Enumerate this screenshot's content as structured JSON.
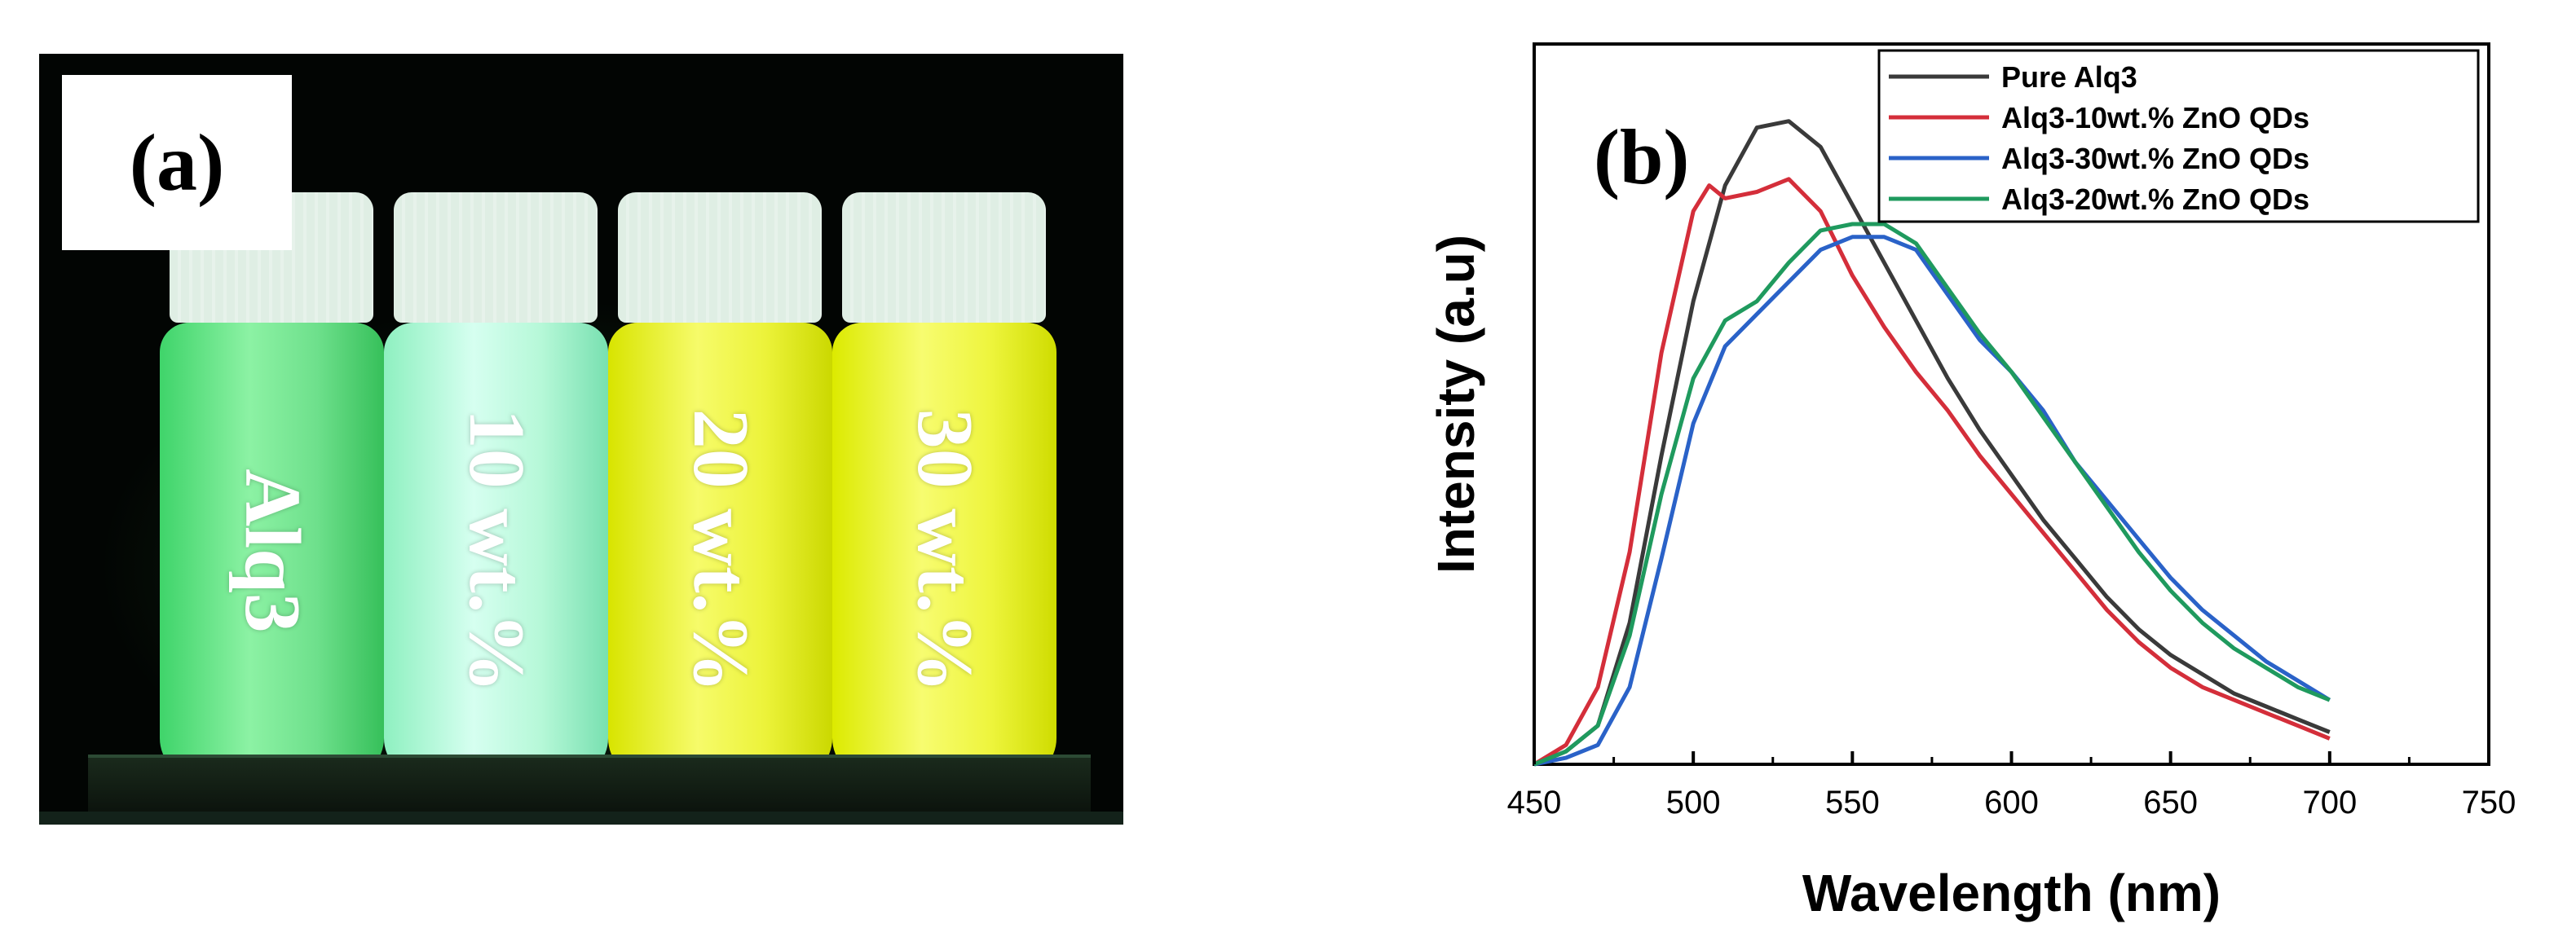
{
  "panel_a": {
    "tag": "(a)",
    "vials": [
      {
        "label": "Alq3"
      },
      {
        "label": "10 wt.%"
      },
      {
        "label": "20 wt.%"
      },
      {
        "label": "30 wt.%"
      }
    ]
  },
  "chart_data": {
    "type": "line",
    "panel_tag": "(b)",
    "xlabel": "Wavelength (nm)",
    "ylabel": "Intensity (a.u)",
    "xlim": [
      450,
      750
    ],
    "ylim": [
      0,
      1.12
    ],
    "xticks": [
      "450",
      "500",
      "550",
      "600",
      "650",
      "700",
      "750"
    ],
    "yticks_shown": false,
    "grid": false,
    "legend_placement": "top-right",
    "series": [
      {
        "name": "Pure Alq3",
        "color": "#3a3a3a",
        "x": [
          450,
          460,
          470,
          480,
          490,
          500,
          510,
          520,
          530,
          540,
          550,
          560,
          570,
          580,
          590,
          600,
          610,
          620,
          630,
          640,
          650,
          660,
          670,
          680,
          690,
          700
        ],
        "y": [
          0.0,
          0.02,
          0.06,
          0.22,
          0.48,
          0.72,
          0.9,
          0.99,
          1.0,
          0.96,
          0.87,
          0.78,
          0.69,
          0.6,
          0.52,
          0.45,
          0.38,
          0.32,
          0.26,
          0.21,
          0.17,
          0.14,
          0.11,
          0.09,
          0.07,
          0.05
        ]
      },
      {
        "name": "Alq3-10wt.% ZnO QDs",
        "color": "#d42e3a",
        "x": [
          450,
          460,
          470,
          480,
          490,
          500,
          505,
          510,
          520,
          530,
          540,
          550,
          560,
          570,
          580,
          590,
          600,
          610,
          620,
          630,
          640,
          650,
          660,
          670,
          680,
          690,
          700
        ],
        "y": [
          0.0,
          0.03,
          0.12,
          0.33,
          0.64,
          0.86,
          0.9,
          0.88,
          0.89,
          0.91,
          0.86,
          0.76,
          0.68,
          0.61,
          0.55,
          0.48,
          0.42,
          0.36,
          0.3,
          0.24,
          0.19,
          0.15,
          0.12,
          0.1,
          0.08,
          0.06,
          0.04
        ]
      },
      {
        "name": "Alq3-30wt.% ZnO QDs",
        "color": "#2a62c8",
        "x": [
          450,
          460,
          470,
          480,
          490,
          500,
          510,
          520,
          530,
          540,
          550,
          560,
          570,
          580,
          590,
          600,
          610,
          620,
          630,
          640,
          650,
          660,
          670,
          680,
          690,
          700
        ],
        "y": [
          0.0,
          0.01,
          0.03,
          0.12,
          0.32,
          0.53,
          0.65,
          0.7,
          0.75,
          0.8,
          0.82,
          0.82,
          0.8,
          0.73,
          0.66,
          0.61,
          0.55,
          0.47,
          0.41,
          0.35,
          0.29,
          0.24,
          0.2,
          0.16,
          0.13,
          0.1
        ]
      },
      {
        "name": "Alq3-20wt.% ZnO QDs",
        "color": "#1f9a5e",
        "x": [
          450,
          460,
          470,
          480,
          490,
          500,
          510,
          520,
          530,
          540,
          550,
          560,
          570,
          580,
          590,
          600,
          610,
          620,
          630,
          640,
          650,
          660,
          670,
          680,
          690,
          700
        ],
        "y": [
          0.0,
          0.02,
          0.06,
          0.2,
          0.42,
          0.6,
          0.69,
          0.72,
          0.78,
          0.83,
          0.84,
          0.84,
          0.81,
          0.74,
          0.67,
          0.61,
          0.54,
          0.47,
          0.4,
          0.33,
          0.27,
          0.22,
          0.18,
          0.15,
          0.12,
          0.1
        ]
      }
    ]
  }
}
